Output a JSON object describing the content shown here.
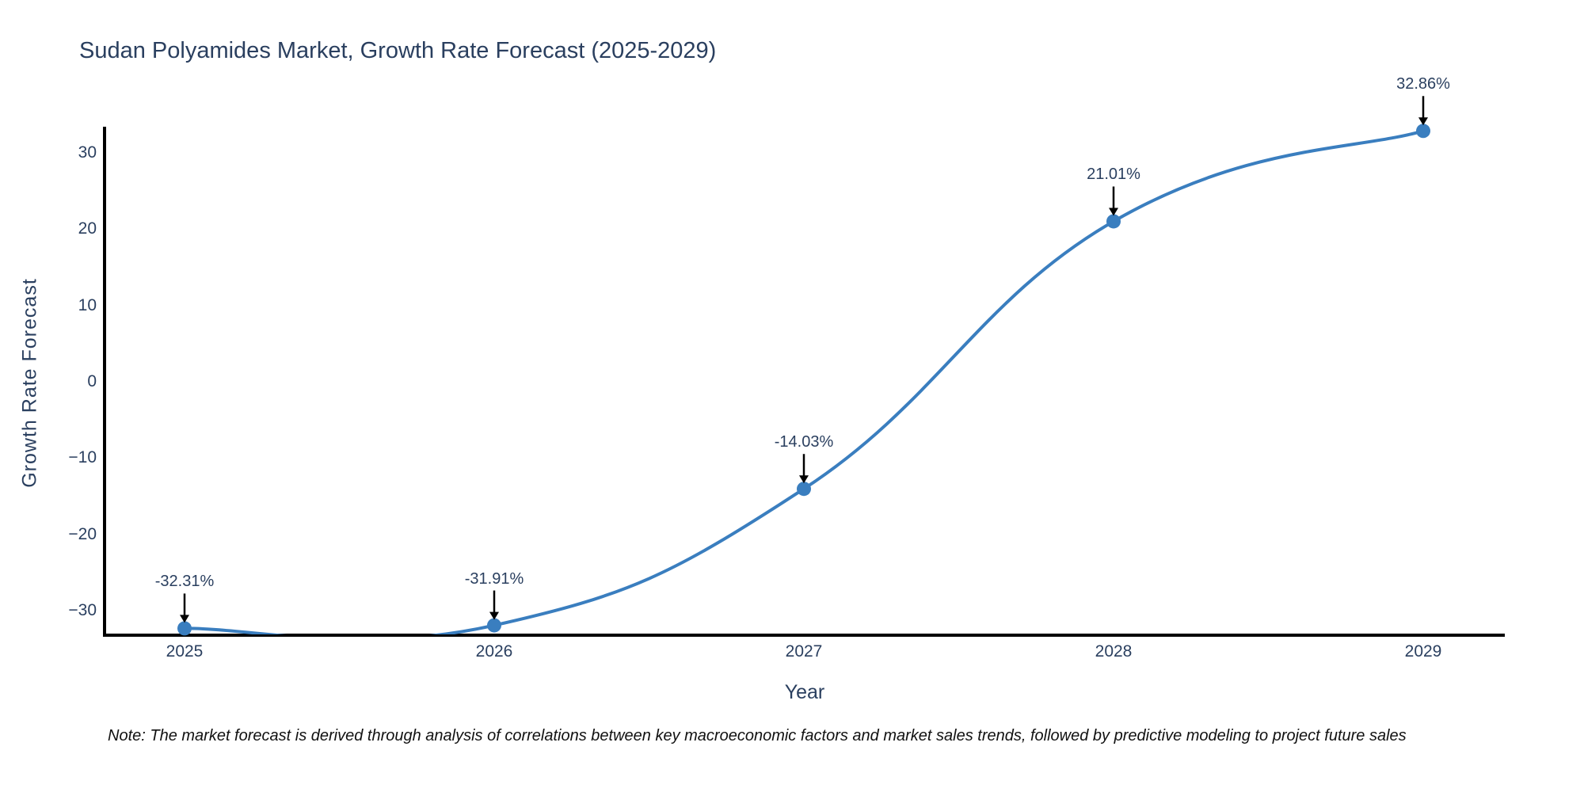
{
  "chart": {
    "title": "Sudan Polyamides Market, Growth Rate Forecast (2025-2029)",
    "xlabel": "Year",
    "ylabel": "Growth Rate Forecast"
  },
  "note": {
    "text": "Note: The market forecast is derived through analysis of correlations between key macroeconomic factors and market sales trends, followed by predictive modeling to project future sales"
  },
  "colors": {
    "line": "#3a7ebf",
    "marker": "#3a7ebf",
    "axis": "#000000",
    "text": "#2a3f5f",
    "arrow": "#000000",
    "background": "#ffffff"
  },
  "chart_data": {
    "type": "line",
    "x": [
      2025,
      2026,
      2027,
      2028,
      2029
    ],
    "series": [
      {
        "name": "Growth Rate Forecast",
        "values": [
          -32.31,
          -31.91,
          -14.03,
          21.01,
          32.86
        ]
      }
    ],
    "title": "Sudan Polyamides Market, Growth Rate Forecast (2025-2029)",
    "xlabel": "Year",
    "ylabel": "Growth Rate Forecast",
    "ylim": [
      -33.2,
      33.2
    ],
    "yticks": [
      30,
      20,
      10,
      0,
      -10,
      -20,
      -30
    ],
    "xticks": [
      "2025",
      "2026",
      "2027",
      "2028",
      "2029"
    ],
    "line_shape": "spline",
    "smoothing": 1.3,
    "markers": true,
    "grid": false,
    "legend": "none",
    "annotations": [
      {
        "x": 2025,
        "y": -32.31,
        "text": "-32.31%"
      },
      {
        "x": 2026,
        "y": -31.91,
        "text": "-31.91%"
      },
      {
        "x": 2027,
        "y": -14.03,
        "text": "-14.03%"
      },
      {
        "x": 2028,
        "y": 21.01,
        "text": "21.01%"
      },
      {
        "x": 2029,
        "y": 32.86,
        "text": "32.86%"
      }
    ]
  }
}
